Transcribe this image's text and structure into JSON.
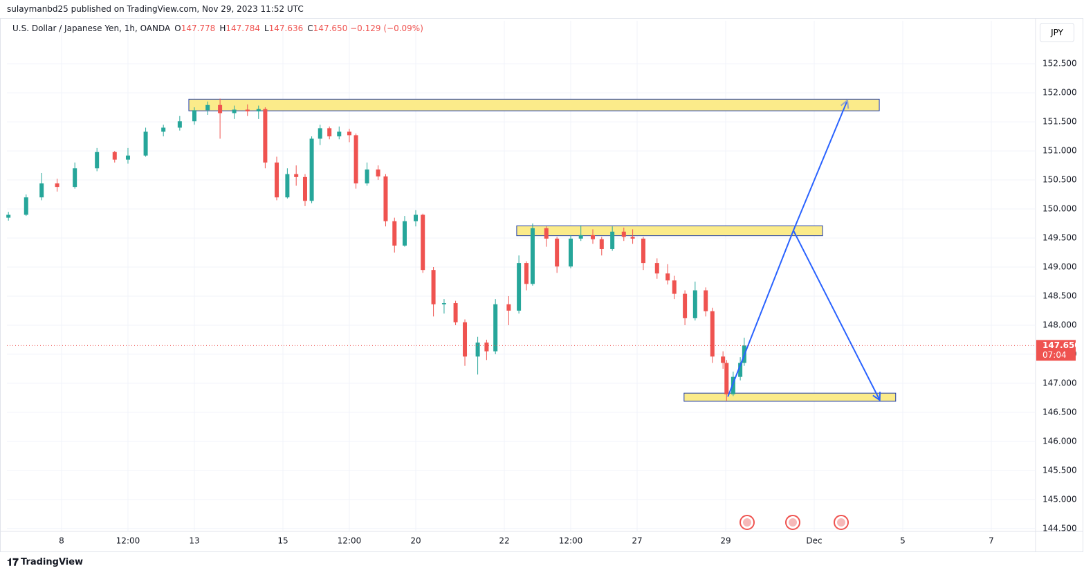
{
  "header": "sulaymanbd25 published on TradingView.com, Nov 29, 2023 11:52 UTC",
  "footer": "TradingView",
  "chart_data": {
    "type": "candlestick",
    "symbol": "U.S. Dollar / Japanese Yen, 1h, OANDA",
    "ohlc": [
      {
        "key": "O",
        "text": "147.778"
      },
      {
        "key": "H",
        "text": "147.784"
      },
      {
        "key": "L",
        "text": "147.636"
      },
      {
        "key": "C",
        "text": "147.650"
      }
    ],
    "change": "−0.129 (−0.09%)",
    "currency": "JPY",
    "up_color": "#26a69a",
    "down_color": "#ef5350",
    "xlim": [
      -1.234,
      22.0
    ],
    "xticks": [
      {
        "value": 0,
        "label": "8"
      },
      {
        "value": 1.5,
        "label": "12:00"
      },
      {
        "value": 3,
        "label": "13"
      },
      {
        "value": 5,
        "label": "15"
      },
      {
        "value": 6.5,
        "label": "12:00"
      },
      {
        "value": 8,
        "label": "20"
      },
      {
        "value": 10,
        "label": "22"
      },
      {
        "value": 11.5,
        "label": "12:00"
      },
      {
        "value": 13,
        "label": "27"
      },
      {
        "value": 15,
        "label": "29"
      },
      {
        "value": 17,
        "label": "Dec"
      },
      {
        "value": 19,
        "label": "5"
      },
      {
        "value": 21,
        "label": "7"
      }
    ],
    "ylim": [
      144.45,
      153.24
    ],
    "yticks": [
      {
        "value": 144.5,
        "label": "144.500"
      },
      {
        "value": 145,
        "label": "145.000"
      },
      {
        "value": 145.5,
        "label": "145.500"
      },
      {
        "value": 146,
        "label": "146.000"
      },
      {
        "value": 146.5,
        "label": "146.500"
      },
      {
        "value": 147,
        "label": "147.000"
      },
      {
        "value": 147.5,
        "label": "147.500"
      },
      {
        "value": 148,
        "label": "148.000"
      },
      {
        "value": 148.5,
        "label": "148.500"
      },
      {
        "value": 149,
        "label": "149.000"
      },
      {
        "value": 149.5,
        "label": "149.500"
      },
      {
        "value": 150,
        "label": "150.000"
      },
      {
        "value": 150.5,
        "label": "150.500"
      },
      {
        "value": 151,
        "label": "151.000"
      },
      {
        "value": 151.5,
        "label": "151.500"
      },
      {
        "value": 152,
        "label": "152.000"
      },
      {
        "value": 152.5,
        "label": "152.500"
      }
    ],
    "grid": true,
    "last_price": {
      "value": 147.65,
      "label": "147.650"
    },
    "countdown": "07:04",
    "candles": [
      [
        -1.2,
        149.85,
        149.95,
        149.8,
        149.9
      ],
      [
        -0.8,
        149.9,
        150.25,
        149.88,
        150.2
      ],
      [
        -0.45,
        150.2,
        150.62,
        150.15,
        150.44
      ],
      [
        -0.1,
        150.44,
        150.52,
        150.3,
        150.38
      ],
      [
        0.3,
        150.38,
        150.8,
        150.35,
        150.7
      ],
      [
        0.8,
        150.7,
        151.05,
        150.65,
        150.98
      ],
      [
        1.2,
        150.98,
        151.0,
        150.8,
        150.85
      ],
      [
        1.5,
        150.85,
        151.05,
        150.78,
        150.92
      ],
      [
        1.9,
        150.92,
        151.4,
        150.9,
        151.33
      ],
      [
        2.3,
        151.33,
        151.45,
        151.25,
        151.4
      ],
      [
        2.67,
        151.4,
        151.6,
        151.35,
        151.51
      ],
      [
        3.0,
        151.51,
        151.75,
        151.45,
        151.7
      ],
      [
        3.3,
        151.7,
        151.85,
        151.62,
        151.79
      ],
      [
        3.58,
        151.79,
        151.9,
        151.21,
        151.65
      ],
      [
        3.9,
        151.65,
        151.78,
        151.55,
        151.71
      ],
      [
        4.2,
        151.71,
        151.8,
        151.6,
        151.68
      ],
      [
        4.45,
        151.68,
        151.78,
        151.55,
        151.72
      ],
      [
        4.6,
        151.72,
        151.75,
        150.7,
        150.8
      ],
      [
        4.86,
        150.8,
        150.9,
        150.15,
        150.2
      ],
      [
        5.1,
        150.2,
        150.7,
        150.18,
        150.6
      ],
      [
        5.3,
        150.6,
        150.75,
        150.4,
        150.55
      ],
      [
        5.5,
        150.55,
        150.6,
        150.05,
        150.14
      ],
      [
        5.65,
        150.14,
        151.25,
        150.1,
        151.21
      ],
      [
        5.84,
        151.21,
        151.45,
        151.1,
        151.39
      ],
      [
        6.05,
        151.39,
        151.42,
        151.2,
        151.25
      ],
      [
        6.27,
        151.25,
        151.42,
        151.2,
        151.33
      ],
      [
        6.5,
        151.33,
        151.38,
        151.15,
        151.27
      ],
      [
        6.65,
        151.27,
        151.3,
        150.35,
        150.44
      ],
      [
        6.9,
        150.44,
        150.8,
        150.4,
        150.68
      ],
      [
        7.15,
        150.68,
        150.75,
        150.5,
        150.56
      ],
      [
        7.32,
        150.56,
        150.6,
        149.7,
        149.79
      ],
      [
        7.52,
        149.79,
        149.85,
        149.25,
        149.37
      ],
      [
        7.75,
        149.37,
        149.88,
        149.35,
        149.79
      ],
      [
        8.0,
        149.79,
        149.98,
        149.7,
        149.9
      ],
      [
        8.16,
        149.9,
        149.92,
        148.9,
        148.95
      ],
      [
        8.4,
        148.95,
        149.0,
        148.15,
        148.36
      ],
      [
        8.64,
        148.36,
        148.45,
        148.2,
        148.38
      ],
      [
        8.9,
        148.38,
        148.42,
        148.0,
        148.05
      ],
      [
        9.11,
        148.05,
        148.1,
        147.3,
        147.46
      ],
      [
        9.4,
        147.46,
        147.8,
        147.15,
        147.7
      ],
      [
        9.6,
        147.7,
        147.75,
        147.4,
        147.55
      ],
      [
        9.8,
        147.55,
        148.45,
        147.5,
        148.36
      ],
      [
        10.1,
        148.36,
        148.5,
        148.0,
        148.25
      ],
      [
        10.33,
        148.25,
        149.2,
        148.2,
        149.07
      ],
      [
        10.5,
        149.07,
        149.1,
        148.6,
        148.71
      ],
      [
        10.64,
        148.71,
        149.75,
        148.68,
        149.67
      ],
      [
        10.95,
        149.67,
        149.7,
        149.35,
        149.49
      ],
      [
        11.19,
        149.49,
        149.52,
        148.9,
        149.01
      ],
      [
        11.5,
        149.01,
        149.55,
        148.98,
        149.49
      ],
      [
        11.73,
        149.49,
        149.72,
        149.45,
        149.55
      ],
      [
        12.0,
        149.55,
        149.65,
        149.4,
        149.48
      ],
      [
        12.2,
        149.48,
        149.52,
        149.2,
        149.31
      ],
      [
        12.44,
        149.31,
        149.7,
        149.28,
        149.61
      ],
      [
        12.7,
        149.61,
        149.68,
        149.45,
        149.52
      ],
      [
        12.9,
        149.52,
        149.65,
        149.4,
        149.49
      ],
      [
        13.14,
        149.49,
        149.52,
        148.95,
        149.07
      ],
      [
        13.45,
        149.07,
        149.15,
        148.8,
        148.89
      ],
      [
        13.69,
        148.89,
        149.05,
        148.7,
        148.77
      ],
      [
        13.84,
        148.77,
        148.85,
        148.45,
        148.54
      ],
      [
        14.08,
        148.54,
        148.6,
        148.0,
        148.12
      ],
      [
        14.31,
        148.12,
        148.75,
        148.08,
        148.6
      ],
      [
        14.55,
        148.6,
        148.65,
        148.15,
        148.24
      ],
      [
        14.7,
        148.24,
        148.3,
        147.35,
        147.46
      ],
      [
        14.94,
        147.46,
        147.55,
        147.25,
        147.35
      ],
      [
        15.02,
        147.35,
        147.4,
        146.7,
        146.81
      ],
      [
        15.17,
        146.81,
        147.2,
        146.78,
        147.11
      ],
      [
        15.33,
        147.11,
        147.45,
        147.05,
        147.35
      ],
      [
        15.42,
        147.35,
        147.784,
        147.3,
        147.65
      ]
    ],
    "zones": [
      {
        "x": [
          2.875,
          18.47
        ],
        "price": [
          151.69,
          151.89
        ],
        "color": "#fbeb8a"
      },
      {
        "x": [
          10.28,
          17.19
        ],
        "price": [
          149.54,
          149.71
        ],
        "color": "#fbeb8a"
      },
      {
        "x": [
          14.06,
          18.84
        ],
        "price": [
          146.69,
          146.83
        ],
        "color": "#fbeb8a"
      }
    ],
    "arrows": [
      {
        "x": [
          15.05,
          16.53,
          18.48
        ],
        "price": [
          146.77,
          149.63,
          146.71
        ],
        "color": "#2962ff"
      },
      {
        "x": [
          16.53,
          17.75
        ],
        "price": [
          149.63,
          151.87
        ],
        "color": "#2962ff"
      }
    ]
  }
}
